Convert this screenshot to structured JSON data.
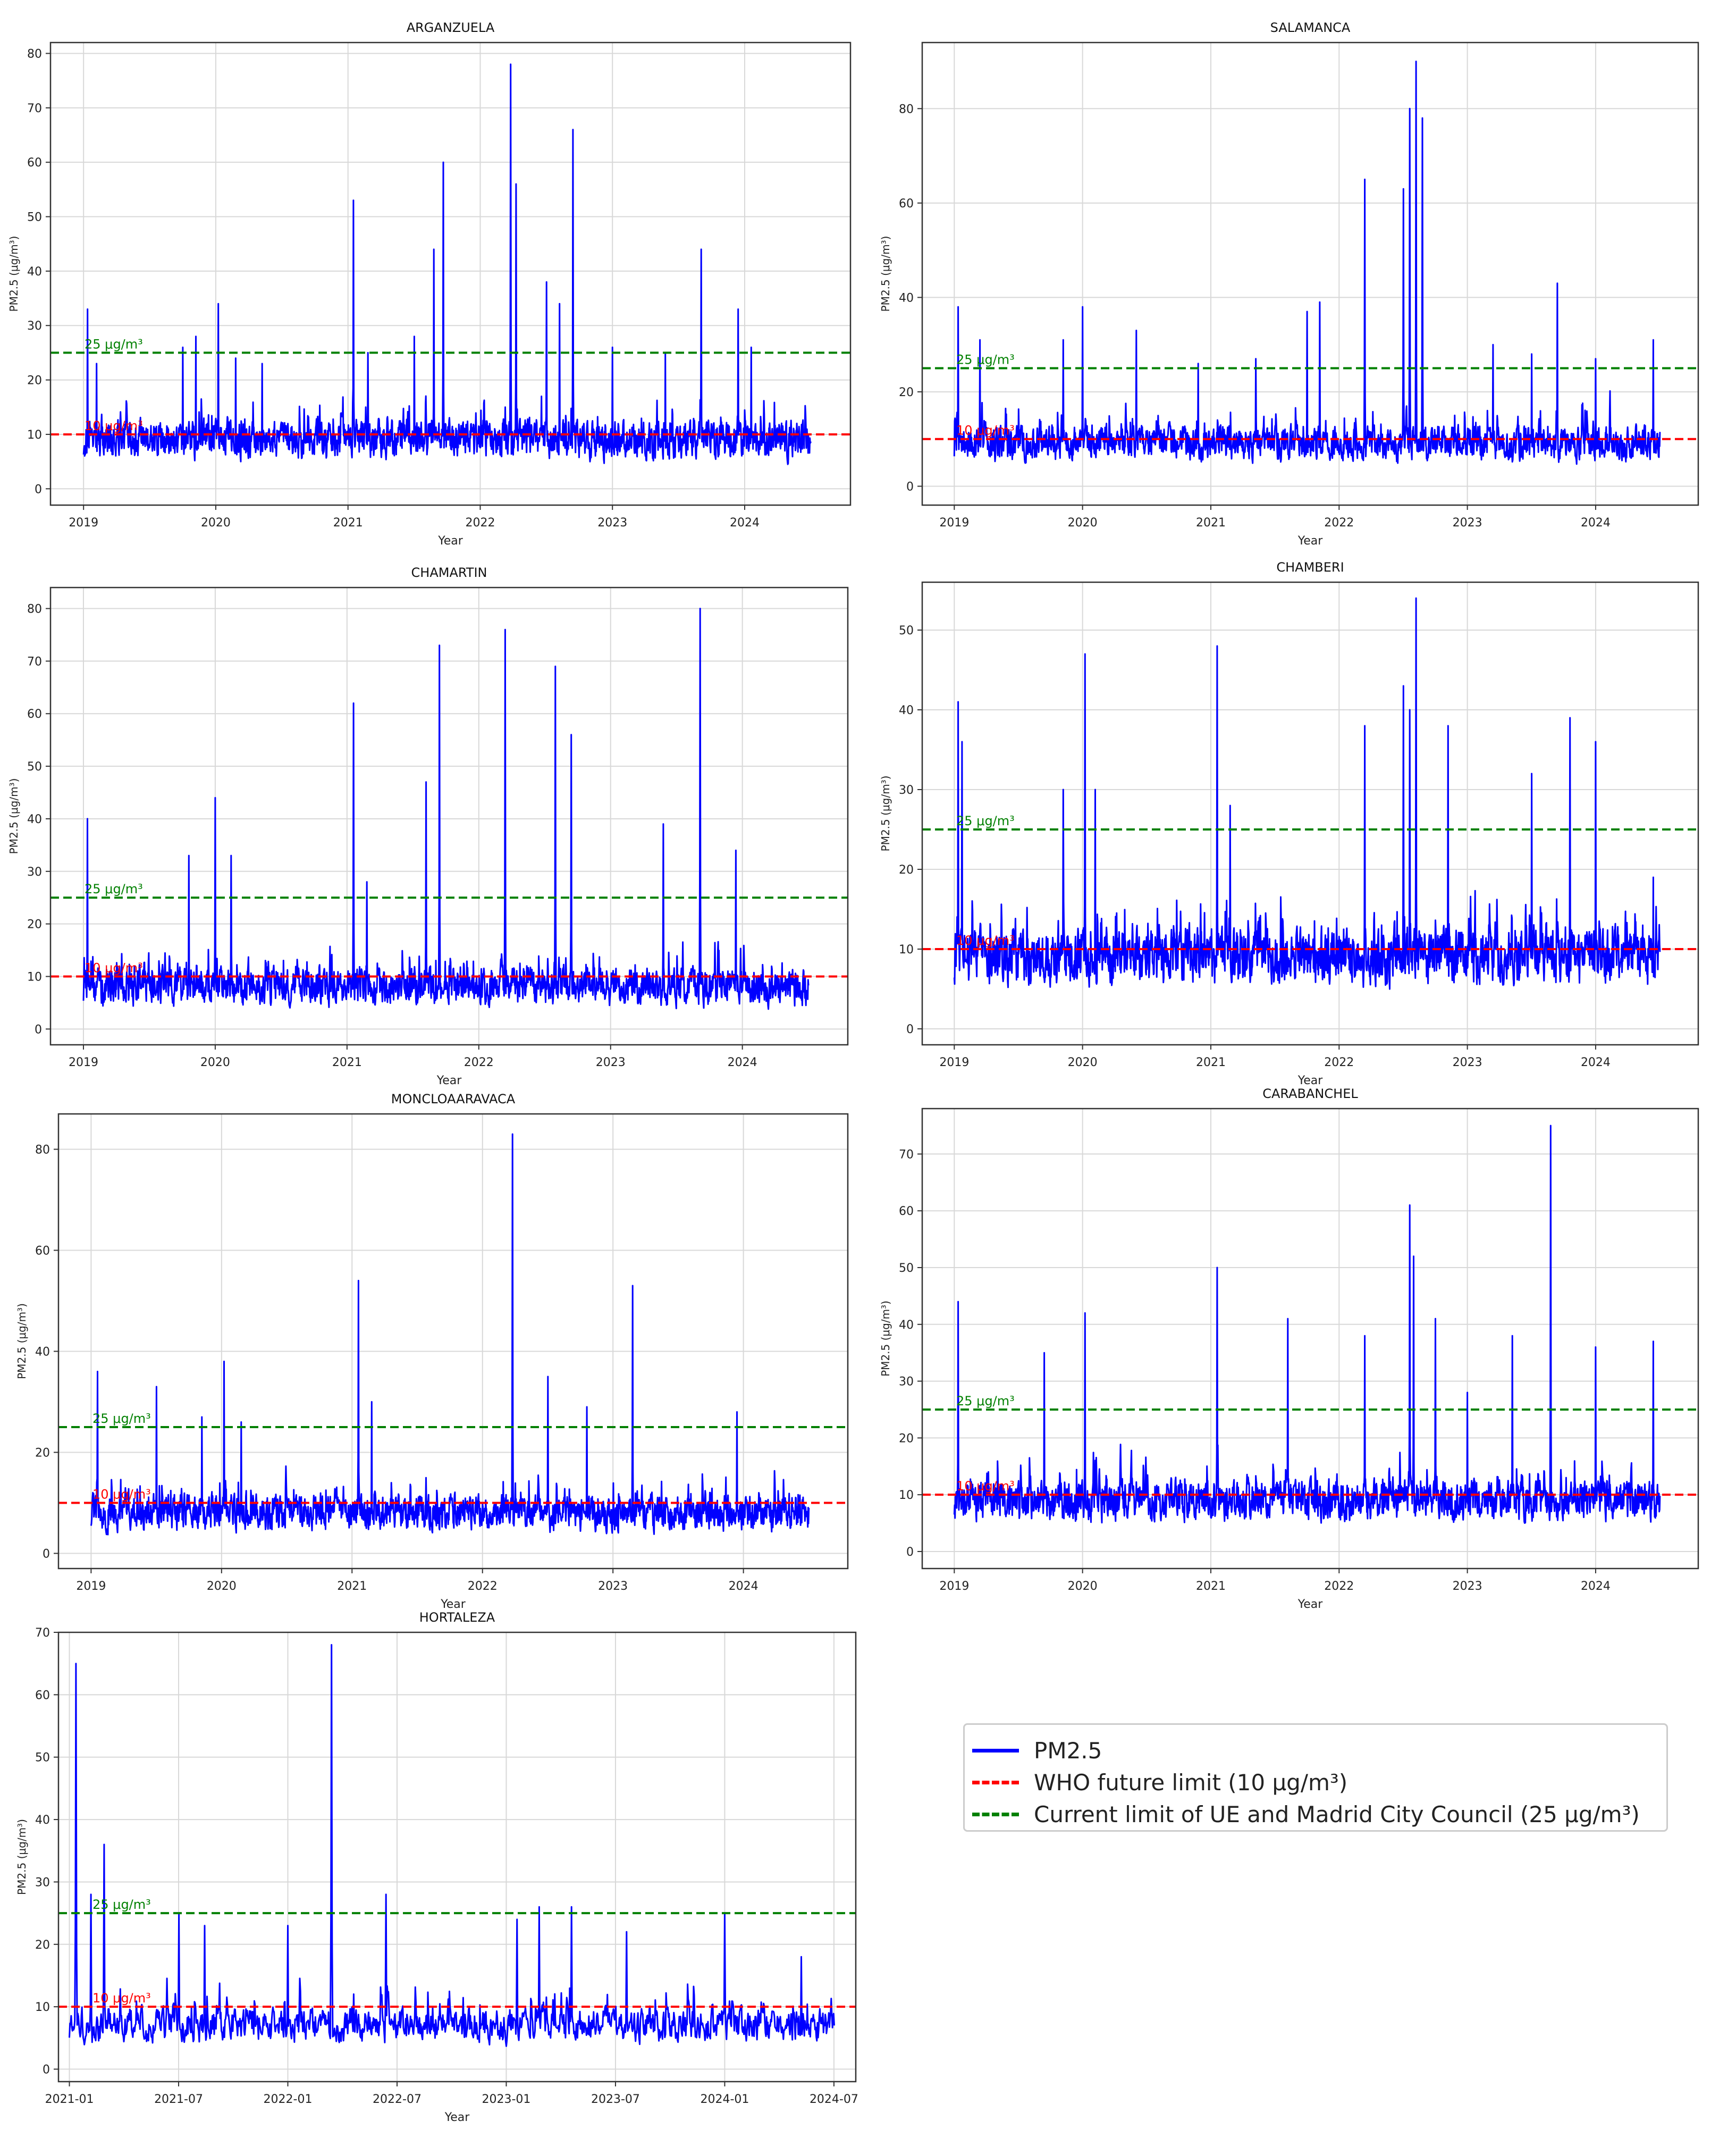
{
  "colors": {
    "series": "#0000ff",
    "who": "#ff0000",
    "eu": "#008000",
    "grid": "#d8d8d8",
    "axis": "#333333"
  },
  "legend": {
    "items": [
      {
        "label": "PM2.5",
        "color": "#0000ff",
        "style": "solid"
      },
      {
        "label": "WHO future limit (10 μg/m³)",
        "color": "#ff0000",
        "style": "dashed"
      },
      {
        "label": "Current limit of UE and Madrid City Council (25 μg/m³)",
        "color": "#008000",
        "style": "dashed"
      }
    ]
  },
  "chart_data": [
    {
      "type": "line",
      "title": "ARGANZUELA",
      "xlabel": "Year",
      "ylabel": "PM2.5 (μg/m³)",
      "xlim": [
        2018.75,
        2024.8
      ],
      "ylim": [
        -3,
        82
      ],
      "xticks": [
        2019,
        2020,
        2021,
        2022,
        2023,
        2024
      ],
      "xticklabels": [
        "2019",
        "2020",
        "2021",
        "2022",
        "2023",
        "2024"
      ],
      "yticks": [
        0,
        10,
        20,
        30,
        40,
        50,
        60,
        70,
        80
      ],
      "yticklabels": [
        "0",
        "10",
        "20",
        "30",
        "40",
        "50",
        "60",
        "70",
        "80"
      ],
      "hlines": [
        {
          "y": 25,
          "label": "25 μg/m³",
          "color": "#008000"
        },
        {
          "y": 10,
          "label": "10 μg/m³",
          "color": "#ff0000"
        }
      ],
      "series": [
        {
          "name": "PM2.5",
          "start": 2019.0,
          "end": 2024.5,
          "base": 9,
          "low": 1,
          "noise": 5,
          "peaks": [
            [
              2019.03,
              33
            ],
            [
              2019.1,
              23
            ],
            [
              2019.75,
              26
            ],
            [
              2019.85,
              28
            ],
            [
              2020.02,
              34
            ],
            [
              2020.15,
              24
            ],
            [
              2020.35,
              23
            ],
            [
              2021.04,
              53
            ],
            [
              2021.15,
              25
            ],
            [
              2021.5,
              28
            ],
            [
              2021.65,
              44
            ],
            [
              2021.72,
              60
            ],
            [
              2022.23,
              78
            ],
            [
              2022.27,
              56
            ],
            [
              2022.5,
              38
            ],
            [
              2022.6,
              34
            ],
            [
              2022.7,
              66
            ],
            [
              2023.0,
              26
            ],
            [
              2023.4,
              25
            ],
            [
              2023.67,
              44
            ],
            [
              2023.95,
              33
            ],
            [
              2024.05,
              26
            ]
          ]
        }
      ]
    },
    {
      "type": "line",
      "title": "SALAMANCA",
      "xlabel": "Year",
      "ylabel": "PM2.5 (μg/m³)",
      "xlim": [
        2018.75,
        2024.8
      ],
      "ylim": [
        -4,
        94
      ],
      "xticks": [
        2019,
        2020,
        2021,
        2022,
        2023,
        2024
      ],
      "xticklabels": [
        "2019",
        "2020",
        "2021",
        "2022",
        "2023",
        "2024"
      ],
      "yticks": [
        0,
        20,
        40,
        60,
        80
      ],
      "yticklabels": [
        "0",
        "20",
        "40",
        "60",
        "80"
      ],
      "hlines": [
        {
          "y": 25,
          "label": "25 μg/m³",
          "color": "#008000"
        },
        {
          "y": 10,
          "label": "10 μg/m³",
          "color": "#ff0000"
        }
      ],
      "series": [
        {
          "name": "PM2.5",
          "start": 2019.0,
          "end": 2024.5,
          "base": 9,
          "low": 0,
          "noise": 5,
          "peaks": [
            [
              2019.03,
              38
            ],
            [
              2019.2,
              31
            ],
            [
              2019.85,
              31
            ],
            [
              2020.0,
              38
            ],
            [
              2020.42,
              33
            ],
            [
              2020.9,
              26
            ],
            [
              2021.35,
              27
            ],
            [
              2021.75,
              37
            ],
            [
              2021.85,
              39
            ],
            [
              2022.2,
              65
            ],
            [
              2022.5,
              63
            ],
            [
              2022.55,
              80
            ],
            [
              2022.6,
              90
            ],
            [
              2022.65,
              78
            ],
            [
              2023.2,
              30
            ],
            [
              2023.5,
              28
            ],
            [
              2023.7,
              43
            ],
            [
              2024.0,
              27
            ],
            [
              2024.45,
              31
            ]
          ]
        }
      ]
    },
    {
      "type": "line",
      "title": "CHAMARTIN",
      "xlabel": "Year",
      "ylabel": "PM2.5 (μg/m³)",
      "xlim": [
        2018.75,
        2024.8
      ],
      "ylim": [
        -3,
        84
      ],
      "xticks": [
        2019,
        2020,
        2021,
        2022,
        2023,
        2024
      ],
      "xticklabels": [
        "2019",
        "2020",
        "2021",
        "2022",
        "2023",
        "2024"
      ],
      "yticks": [
        0,
        10,
        20,
        30,
        40,
        50,
        60,
        70,
        80
      ],
      "yticklabels": [
        "0",
        "10",
        "20",
        "30",
        "40",
        "50",
        "60",
        "70",
        "80"
      ],
      "hlines": [
        {
          "y": 25,
          "label": "25 μg/m³",
          "color": "#008000"
        },
        {
          "y": 10,
          "label": "10 μg/m³",
          "color": "#ff0000"
        }
      ],
      "series": [
        {
          "name": "PM2.5",
          "start": 2019.0,
          "end": 2024.5,
          "base": 8,
          "low": 0,
          "noise": 5,
          "peaks": [
            [
              2019.03,
              40
            ],
            [
              2019.8,
              33
            ],
            [
              2020.0,
              44
            ],
            [
              2020.12,
              33
            ],
            [
              2021.05,
              62
            ],
            [
              2021.15,
              28
            ],
            [
              2021.6,
              47
            ],
            [
              2021.7,
              73
            ],
            [
              2022.2,
              76
            ],
            [
              2022.58,
              69
            ],
            [
              2022.7,
              56
            ],
            [
              2023.4,
              39
            ],
            [
              2023.68,
              80
            ],
            [
              2023.95,
              34
            ]
          ]
        }
      ]
    },
    {
      "type": "line",
      "title": "CHAMBERI",
      "xlabel": "Year",
      "ylabel": "PM2.5 (μg/m³)",
      "xlim": [
        2018.75,
        2024.8
      ],
      "ylim": [
        -2,
        56
      ],
      "xticks": [
        2019,
        2020,
        2021,
        2022,
        2023,
        2024
      ],
      "xticklabels": [
        "2019",
        "2020",
        "2021",
        "2022",
        "2023",
        "2024"
      ],
      "yticks": [
        0,
        10,
        20,
        30,
        40,
        50
      ],
      "yticklabels": [
        "0",
        "10",
        "20",
        "30",
        "40",
        "50"
      ],
      "hlines": [
        {
          "y": 25,
          "label": "25 μg/m³",
          "color": "#008000"
        },
        {
          "y": 10,
          "label": "10 μg/m³",
          "color": "#ff0000"
        }
      ],
      "series": [
        {
          "name": "PM2.5",
          "start": 2019.0,
          "end": 2024.5,
          "base": 9,
          "low": 0,
          "noise": 5,
          "peaks": [
            [
              2019.03,
              41
            ],
            [
              2019.06,
              36
            ],
            [
              2019.85,
              30
            ],
            [
              2020.02,
              47
            ],
            [
              2020.1,
              30
            ],
            [
              2021.05,
              48
            ],
            [
              2021.15,
              28
            ],
            [
              2022.2,
              38
            ],
            [
              2022.5,
              43
            ],
            [
              2022.55,
              40
            ],
            [
              2022.6,
              54
            ],
            [
              2022.85,
              38
            ],
            [
              2023.5,
              32
            ],
            [
              2023.8,
              39
            ],
            [
              2024.0,
              36
            ],
            [
              2024.45,
              19
            ]
          ]
        }
      ]
    },
    {
      "type": "line",
      "title": "MONCLOAARAVACA",
      "xlabel": "Year",
      "ylabel": "PM2.5 (μg/m³)",
      "xlim": [
        2018.75,
        2024.8
      ],
      "ylim": [
        -3,
        87
      ],
      "xticks": [
        2019,
        2020,
        2021,
        2022,
        2023,
        2024
      ],
      "xticklabels": [
        "2019",
        "2020",
        "2021",
        "2022",
        "2023",
        "2024"
      ],
      "yticks": [
        0,
        20,
        40,
        60,
        80
      ],
      "yticklabels": [
        "0",
        "20",
        "40",
        "60",
        "80"
      ],
      "hlines": [
        {
          "y": 25,
          "label": "25 μg/m³",
          "color": "#008000"
        },
        {
          "y": 10,
          "label": "10 μg/m³",
          "color": "#ff0000"
        }
      ],
      "series": [
        {
          "name": "PM2.5",
          "start": 2019.0,
          "end": 2024.5,
          "base": 8,
          "low": 1,
          "noise": 5,
          "peaks": [
            [
              2019.05,
              36
            ],
            [
              2019.5,
              33
            ],
            [
              2019.85,
              27
            ],
            [
              2020.02,
              38
            ],
            [
              2020.15,
              26
            ],
            [
              2021.05,
              54
            ],
            [
              2021.15,
              30
            ],
            [
              2022.23,
              83
            ],
            [
              2022.5,
              35
            ],
            [
              2022.8,
              29
            ],
            [
              2023.15,
              53
            ],
            [
              2023.95,
              28
            ]
          ]
        }
      ]
    },
    {
      "type": "line",
      "title": "CARABANCHEL",
      "xlabel": "Year",
      "ylabel": "PM2.5 (μg/m³)",
      "xlim": [
        2018.75,
        2024.8
      ],
      "ylim": [
        -3,
        78
      ],
      "xticks": [
        2019,
        2020,
        2021,
        2022,
        2023,
        2024
      ],
      "xticklabels": [
        "2019",
        "2020",
        "2021",
        "2022",
        "2023",
        "2024"
      ],
      "yticks": [
        0,
        10,
        20,
        30,
        40,
        50,
        60,
        70
      ],
      "yticklabels": [
        "0",
        "10",
        "20",
        "30",
        "40",
        "50",
        "60",
        "70"
      ],
      "hlines": [
        {
          "y": 25,
          "label": "25 μg/m³",
          "color": "#008000"
        },
        {
          "y": 10,
          "label": "10 μg/m³",
          "color": "#ff0000"
        }
      ],
      "series": [
        {
          "name": "PM2.5",
          "start": 2019.0,
          "end": 2024.5,
          "base": 9,
          "low": 0,
          "noise": 5,
          "peaks": [
            [
              2019.03,
              44
            ],
            [
              2019.7,
              35
            ],
            [
              2020.02,
              42
            ],
            [
              2021.05,
              50
            ],
            [
              2021.6,
              41
            ],
            [
              2022.2,
              38
            ],
            [
              2022.55,
              61
            ],
            [
              2022.58,
              52
            ],
            [
              2022.75,
              41
            ],
            [
              2023.0,
              28
            ],
            [
              2023.35,
              38
            ],
            [
              2023.65,
              75
            ],
            [
              2024.0,
              36
            ],
            [
              2024.45,
              37
            ]
          ]
        }
      ]
    },
    {
      "type": "line",
      "title": "HORTALEZA",
      "xlabel": "Year",
      "ylabel": "PM2.5 (μg/m³)",
      "xlim": [
        2020.95,
        2024.6
      ],
      "ylim": [
        -2,
        70
      ],
      "xticks": [
        2021.0,
        2021.5,
        2022.0,
        2022.5,
        2023.0,
        2023.5,
        2024.0,
        2024.5
      ],
      "xticklabels": [
        "2021-01",
        "2021-07",
        "2022-01",
        "2022-07",
        "2023-01",
        "2023-07",
        "2024-01",
        "2024-07"
      ],
      "yticks": [
        0,
        10,
        20,
        30,
        40,
        50,
        60,
        70
      ],
      "yticklabels": [
        "0",
        "10",
        "20",
        "30",
        "40",
        "50",
        "60",
        "70"
      ],
      "hlines": [
        {
          "y": 25,
          "label": "25 μg/m³",
          "color": "#008000"
        },
        {
          "y": 10,
          "label": "10 μg/m³",
          "color": "#ff0000"
        }
      ],
      "series": [
        {
          "name": "PM2.5",
          "start": 2021.0,
          "end": 2024.5,
          "base": 7,
          "low": 1,
          "noise": 4,
          "peaks": [
            [
              2021.03,
              65
            ],
            [
              2021.1,
              28
            ],
            [
              2021.16,
              36
            ],
            [
              2021.5,
              25
            ],
            [
              2021.62,
              23
            ],
            [
              2022.0,
              23
            ],
            [
              2022.2,
              68
            ],
            [
              2022.45,
              28
            ],
            [
              2023.05,
              24
            ],
            [
              2023.15,
              26
            ],
            [
              2023.3,
              26
            ],
            [
              2023.55,
              22
            ],
            [
              2024.0,
              25
            ],
            [
              2024.35,
              18
            ]
          ]
        }
      ]
    }
  ]
}
